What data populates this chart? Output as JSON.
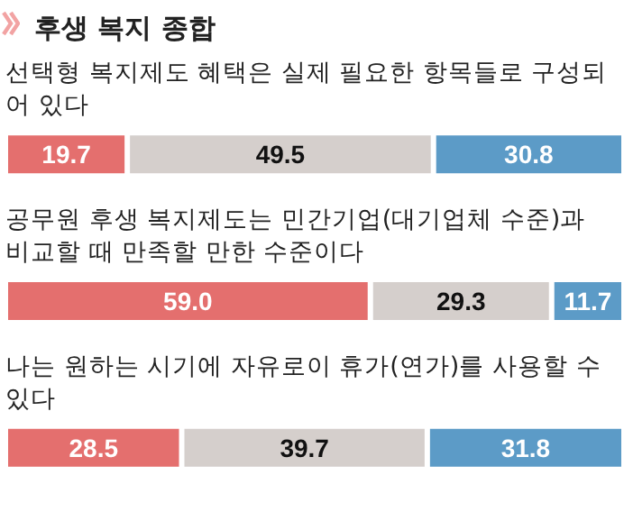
{
  "chart_data": {
    "type": "bar",
    "title": "후생 복지 종합",
    "orientation": "horizontal",
    "stacked": true,
    "categories": [
      "선택형 복지제도 혜택은 실제 필요한 항목들로 구성되어 있다",
      "공무원 후생 복지제도는 민간기업(대기업체 수준)과 비교할 때 만족할 만한 수준이다",
      "나는 원하는 시기에 자유로이 휴가(연가)를 사용할 수 있다"
    ],
    "series": [
      {
        "color": "#e46f6e",
        "values": [
          19.7,
          59.0,
          28.5
        ],
        "value_labels": [
          "19.7",
          "59.0",
          "28.5"
        ]
      },
      {
        "color": "#d5cfcc",
        "values": [
          49.5,
          29.3,
          39.7
        ],
        "value_labels": [
          "49.5",
          "29.3",
          "39.7"
        ]
      },
      {
        "color": "#5c9bc7",
        "values": [
          30.8,
          11.7,
          31.8
        ],
        "value_labels": [
          "30.8",
          "11.7",
          "31.8"
        ]
      }
    ]
  }
}
